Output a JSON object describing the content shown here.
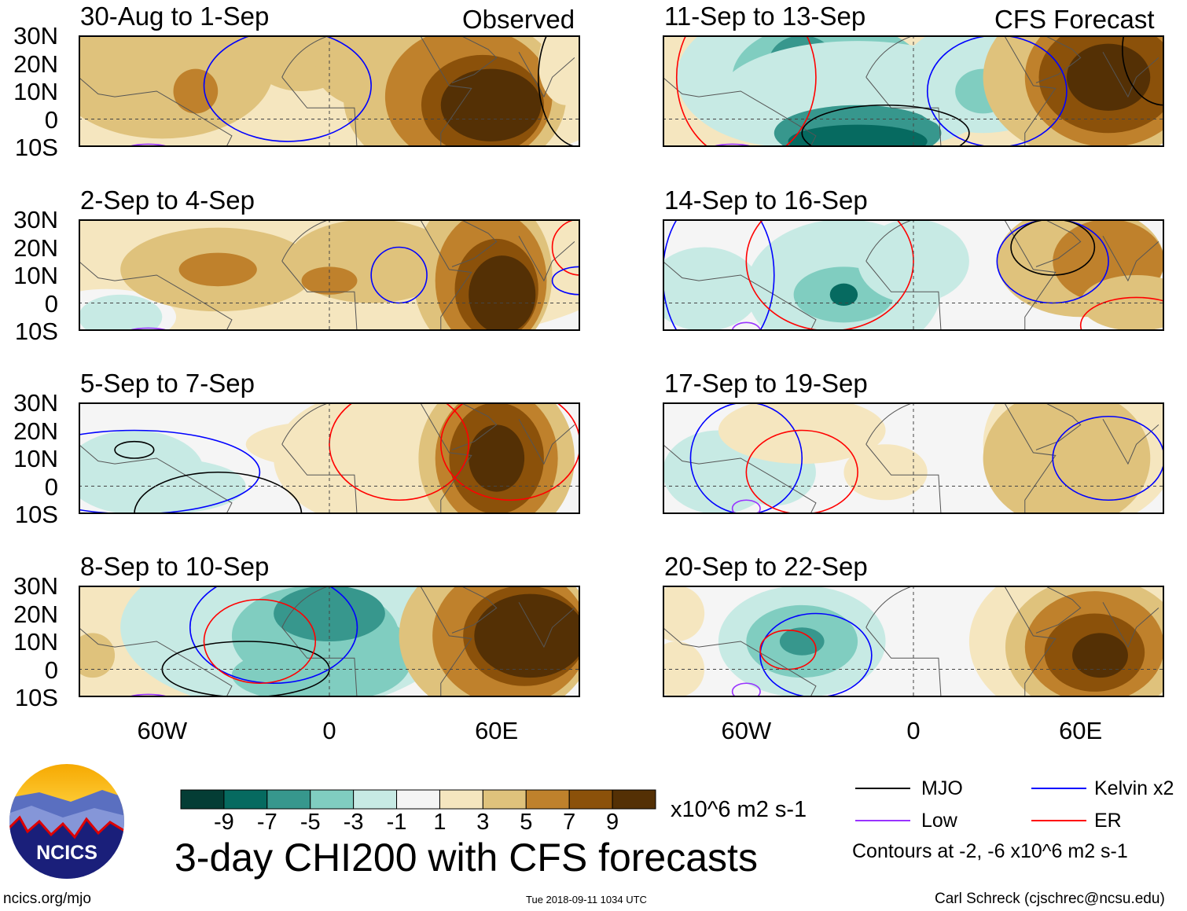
{
  "header": {
    "observed_label": "Observed",
    "forecast_label": "CFS Forecast"
  },
  "panels": [
    {
      "title": "30-Aug to 1-Sep",
      "type": "observed"
    },
    {
      "title": "2-Sep to 4-Sep",
      "type": "observed"
    },
    {
      "title": "5-Sep to 7-Sep",
      "type": "observed"
    },
    {
      "title": "8-Sep to 10-Sep",
      "type": "observed"
    },
    {
      "title": "11-Sep to 13-Sep",
      "type": "forecast"
    },
    {
      "title": "14-Sep to 16-Sep",
      "type": "forecast"
    },
    {
      "title": "17-Sep to 19-Sep",
      "type": "forecast"
    },
    {
      "title": "20-Sep to 22-Sep",
      "type": "forecast"
    }
  ],
  "axes": {
    "lat_labels": [
      "30N",
      "20N",
      "10N",
      "0",
      "10S"
    ],
    "lon_labels": [
      "60W",
      "0",
      "60E"
    ],
    "lon_range": [
      -90,
      90
    ],
    "lat_range": [
      -10,
      30
    ]
  },
  "colorbar": {
    "labels": [
      "-9",
      "-7",
      "-5",
      "-3",
      "-1",
      "1",
      "3",
      "5",
      "7",
      "9"
    ],
    "units": "x10^6 m2 s-1",
    "colors": [
      "#043d35",
      "#066a60",
      "#37978d",
      "#80cdc0",
      "#c7eae4",
      "#f5f5f5",
      "#f5e6bf",
      "#dfc27c",
      "#bf812c",
      "#8b510a",
      "#543005"
    ]
  },
  "title": "3-day CHI200 with CFS forecasts",
  "legend": {
    "items": [
      {
        "label": "MJO",
        "color": "#000000"
      },
      {
        "label": "Kelvin x2",
        "color": "#0000ff"
      },
      {
        "label": "Low",
        "color": "#9933ff"
      },
      {
        "label": "ER",
        "color": "#ff0000"
      }
    ],
    "note": "Contours at -2, -6 x10^6 m2 s-1"
  },
  "logo": {
    "text": "NCICS"
  },
  "footer": {
    "url": "ncics.org/mjo",
    "timestamp": "Tue 2018-09-11 1034 UTC",
    "credit": "Carl Schreck (cjschrec@ncsu.edu)"
  }
}
